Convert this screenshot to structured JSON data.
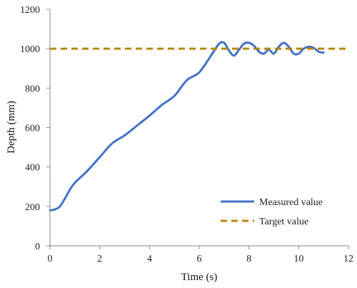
{
  "chart_data": {
    "type": "line",
    "title": "",
    "xlabel": "Time (s)",
    "ylabel": "Depth (mm)",
    "xlim": [
      0,
      12
    ],
    "ylim": [
      0,
      1200
    ],
    "xticks": [
      0,
      2,
      4,
      6,
      8,
      10,
      12
    ],
    "yticks": [
      0,
      200,
      400,
      600,
      800,
      1000,
      1200
    ],
    "grid": false,
    "legend_position": "bottom-right",
    "series": [
      {
        "name": "Measured value",
        "color": "#4472c4",
        "style": "solid",
        "x": [
          0,
          0.2,
          0.4,
          0.6,
          0.8,
          1.0,
          1.5,
          2.0,
          2.5,
          3.0,
          3.5,
          4.0,
          4.5,
          5.0,
          5.5,
          6.0,
          6.5,
          6.8,
          7.0,
          7.2,
          7.4,
          7.6,
          7.8,
          8.0,
          8.2,
          8.4,
          8.6,
          8.8,
          9.0,
          9.2,
          9.4,
          9.6,
          9.8,
          10.0,
          10.2,
          10.4,
          10.6,
          10.8,
          11.0
        ],
        "y": [
          180,
          185,
          200,
          240,
          285,
          320,
          380,
          450,
          520,
          560,
          610,
          660,
          715,
          760,
          840,
          880,
          970,
          1025,
          1030,
          990,
          965,
          995,
          1025,
          1030,
          1015,
          985,
          975,
          995,
          975,
          1010,
          1030,
          1010,
          975,
          975,
          1000,
          1010,
          1005,
          985,
          980
        ]
      },
      {
        "name": "Target value",
        "color": "#b8860b",
        "style": "dashed",
        "x": [
          0,
          12
        ],
        "y": [
          1000,
          1000
        ]
      }
    ]
  }
}
